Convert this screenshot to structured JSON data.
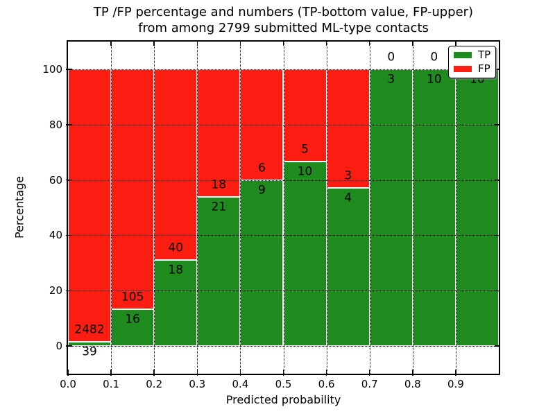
{
  "title": {
    "line1": "TP /FP percentage and numbers (TP-bottom value, FP-upper)",
    "line2": "from among 2799 submitted ML-type contacts"
  },
  "axes": {
    "xlabel": "Predicted probability",
    "ylabel": "Percentage",
    "x_tick_labels": [
      "0.0",
      "0.1",
      "0.2",
      "0.3",
      "0.4",
      "0.5",
      "0.6",
      "0.7",
      "0.8",
      "0.9"
    ],
    "y_tick_labels": [
      "0",
      "20",
      "40",
      "60",
      "80",
      "100"
    ],
    "y_tick_values": [
      0,
      20,
      40,
      60,
      80,
      100
    ]
  },
  "legend": {
    "items": [
      {
        "label": "TP",
        "color": "#1f8b1f"
      },
      {
        "label": "FP",
        "color": "#fc1d12"
      }
    ]
  },
  "colors": {
    "tp_green": "#1f8b1f",
    "fp_red": "#fc1d12",
    "bar_edge": "#ffffff",
    "grid": "#000000",
    "background": "#ffffff"
  },
  "chart_data": {
    "type": "bar",
    "stacked": true,
    "normalized": "each bar totals 100%",
    "title": "TP /FP percentage and numbers (TP-bottom value, FP-upper) from among 2799 submitted ML-type contacts",
    "xlabel": "Predicted probability",
    "ylabel": "Percentage",
    "bin_edges": [
      0.0,
      0.1,
      0.2,
      0.3,
      0.4,
      0.5,
      0.6,
      0.7,
      0.8,
      0.9,
      1.0
    ],
    "categories": [
      "0.0-0.1",
      "0.1-0.2",
      "0.2-0.3",
      "0.3-0.4",
      "0.4-0.5",
      "0.5-0.6",
      "0.6-0.7",
      "0.7-0.8",
      "0.8-0.9",
      "0.9-1.0"
    ],
    "series": [
      {
        "name": "TP",
        "color": "#1f8b1f",
        "counts": [
          39,
          16,
          18,
          21,
          9,
          10,
          4,
          3,
          10,
          10
        ]
      },
      {
        "name": "FP",
        "color": "#fc1d12",
        "counts": [
          2482,
          105,
          40,
          18,
          6,
          5,
          3,
          0,
          0,
          0
        ]
      }
    ],
    "tp_percent": [
      1.5,
      13.2,
      31.0,
      53.8,
      60.0,
      66.7,
      57.1,
      100.0,
      100.0,
      100.0
    ],
    "total_contacts": 2799,
    "xlim": [
      0.0,
      1.0
    ],
    "ylim": [
      -10,
      110
    ],
    "grid": true,
    "legend_position": "upper right"
  }
}
